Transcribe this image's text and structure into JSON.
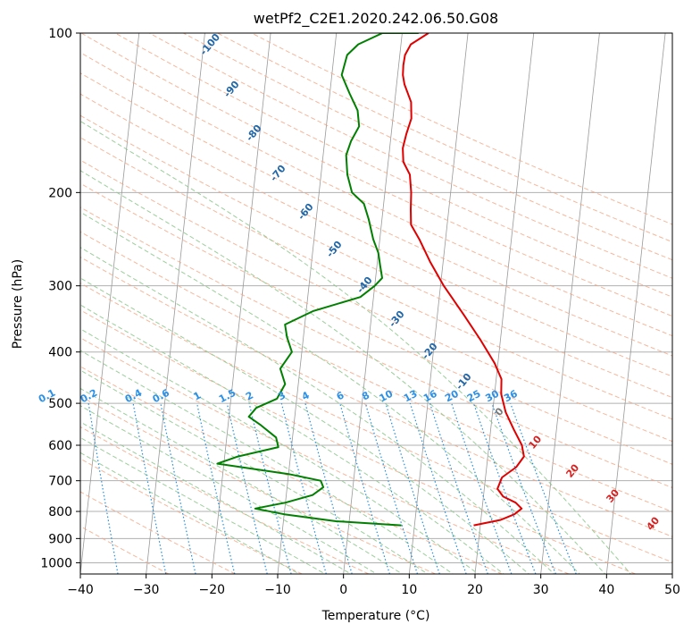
{
  "chart_data": {
    "type": "line",
    "title": "wetPf2_C2E1.2020.242.06.50.G08",
    "xlabel": "Temperature (°C)",
    "ylabel": "Pressure (hPa)",
    "xlim": [
      -40,
      50
    ],
    "ylim": [
      1050,
      100
    ],
    "y_scale": "log",
    "x_ticks": [
      -40,
      -30,
      -20,
      -10,
      0,
      10,
      20,
      30,
      40,
      50
    ],
    "y_ticks": [
      100,
      200,
      300,
      400,
      500,
      600,
      700,
      800,
      900,
      1000
    ],
    "grid": true,
    "series": [
      {
        "color": "#e00000",
        "x": [
          19,
          23,
          25,
          26,
          25,
          23,
          22,
          22.5,
          24.5,
          25.5,
          25,
          23.5,
          22,
          21,
          20.8,
          19.5,
          17,
          14,
          10.5,
          8,
          6,
          4.5,
          4.2,
          4,
          3.5,
          2.3,
          2,
          2.3,
          2.8,
          2.5,
          1.2,
          0.8,
          0.7,
          0.8,
          1.5,
          4
        ],
        "p": [
          850,
          830,
          810,
          790,
          770,
          750,
          725,
          690,
          660,
          630,
          600,
          560,
          520,
          480,
          450,
          420,
          380,
          340,
          300,
          270,
          245,
          230,
          215,
          200,
          185,
          175,
          165,
          155,
          145,
          135,
          125,
          120,
          115,
          110,
          105,
          100
        ]
      },
      {
        "color": "#008000",
        "x": [
          8,
          -2,
          -10,
          -14.5,
          -10,
          -6,
          -4.5,
          -5,
          -10,
          -21,
          -18,
          -12,
          -12.5,
          -15,
          -17,
          -16,
          -13,
          -12,
          -13,
          -11.5,
          -12.5,
          -13,
          -9,
          -2,
          0,
          1,
          0.5,
          0,
          -1,
          -2,
          -3,
          -5,
          -6,
          -6.5,
          -6,
          -5,
          -5.5,
          -7,
          -8.5,
          -8,
          -6.5,
          -3,
          2.5
        ],
        "p": [
          850,
          835,
          810,
          790,
          770,
          745,
          720,
          700,
          680,
          650,
          630,
          605,
          580,
          550,
          530,
          510,
          490,
          460,
          430,
          400,
          375,
          355,
          335,
          315,
          300,
          290,
          275,
          260,
          245,
          225,
          210,
          200,
          185,
          170,
          160,
          150,
          140,
          130,
          120,
          110,
          105,
          100,
          100
        ]
      }
    ],
    "dry_adiabat_labels": [
      "-100",
      "-90",
      "-80",
      "-70",
      "-60",
      "-50",
      "-40",
      "-30",
      "-20",
      "-10",
      "0",
      "10",
      "20",
      "30",
      "40"
    ],
    "mixing_ratio_labels": [
      "0.1",
      "0.2",
      "0.4",
      "0.6",
      "1",
      "1.5",
      "2",
      "3",
      "4",
      "6",
      "8",
      "10",
      "13",
      "16",
      "20",
      "25",
      "30",
      "36"
    ],
    "colors": {
      "temperature": "#e00000",
      "dewpoint": "#008000",
      "dry_adiabat": "#f4a582",
      "moist_adiabat": "#90c990",
      "mixing_ratio": "#1f8fe0",
      "isotherm": "#999999",
      "label_blue": "#2066a8",
      "label_red": "#d62020",
      "label_mix": "#2a90e8"
    }
  }
}
